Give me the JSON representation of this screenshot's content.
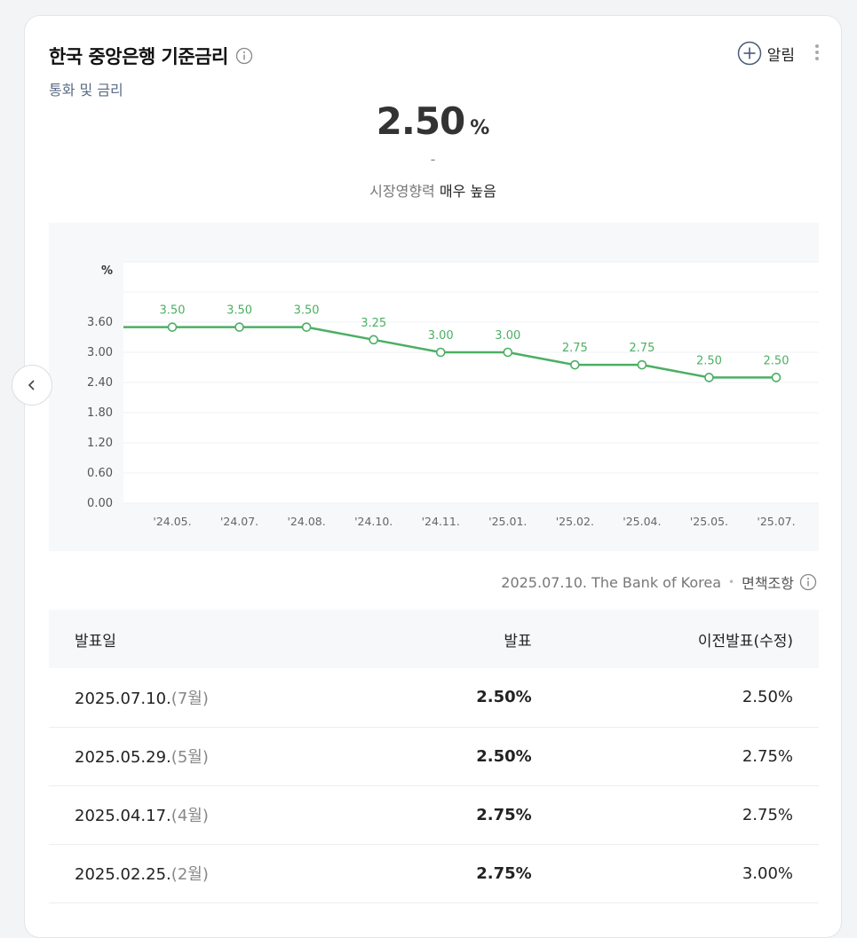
{
  "header": {
    "title": "한국 중앙은행 기준금리",
    "category": "통화 및 금리",
    "alarm_label": "알림"
  },
  "summary": {
    "value": "2.50",
    "unit": "%",
    "change": "-",
    "impact_label": "시장영향력",
    "impact_value": "매우 높음"
  },
  "chart_data": {
    "type": "line",
    "ylabel": "%",
    "categories": [
      "'24.05.",
      "'24.07.",
      "'24.08.",
      "'24.10.",
      "'24.11.",
      "'25.01.",
      "'25.02.",
      "'25.04.",
      "'25.05.",
      "'25.07."
    ],
    "values": [
      3.5,
      3.5,
      3.5,
      3.25,
      3.0,
      3.0,
      2.75,
      2.75,
      2.5,
      2.5
    ],
    "data_labels": [
      "3.50",
      "3.50",
      "3.50",
      "3.25",
      "3.00",
      "3.00",
      "2.75",
      "2.75",
      "2.50",
      "2.50"
    ],
    "yticks": [
      "0.00",
      "0.60",
      "1.20",
      "1.80",
      "2.40",
      "3.00",
      "3.60"
    ],
    "ylim": [
      0,
      4.8
    ],
    "grid": true,
    "line_color": "#4caf64"
  },
  "source": {
    "text": "2025.07.10. The Bank of Korea",
    "separator": "•",
    "disclaimer": "면책조항"
  },
  "table": {
    "headers": {
      "date": "발표일",
      "actual": "발표",
      "previous": "이전발표(수정)"
    },
    "rows": [
      {
        "date": "2025.07.10.",
        "month": "(7월)",
        "actual": "2.50%",
        "previous": "2.50%"
      },
      {
        "date": "2025.05.29.",
        "month": "(5월)",
        "actual": "2.50%",
        "previous": "2.75%"
      },
      {
        "date": "2025.04.17.",
        "month": "(4월)",
        "actual": "2.75%",
        "previous": "2.75%"
      },
      {
        "date": "2025.02.25.",
        "month": "(2월)",
        "actual": "2.75%",
        "previous": "3.00%"
      }
    ]
  }
}
